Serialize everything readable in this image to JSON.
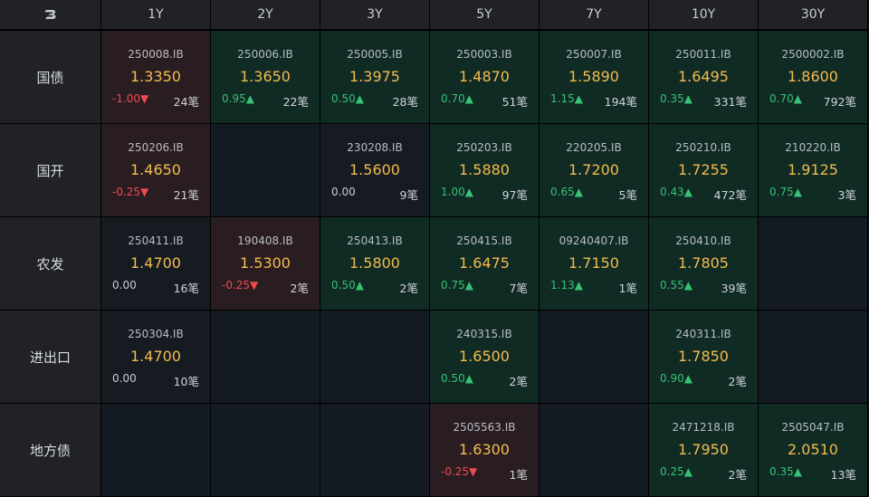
{
  "header": {
    "logo_text": "B",
    "tenors": [
      "1Y",
      "2Y",
      "3Y",
      "5Y",
      "7Y",
      "10Y",
      "30Y"
    ]
  },
  "colors": {
    "up": "#37c274",
    "down": "#f04a4f",
    "rate": "#f2bc4e"
  },
  "rows": [
    {
      "label": "国债",
      "cells": [
        {
          "code": "250008.IB",
          "rate": "1.3350",
          "change": "-1.00▼",
          "dir": "down",
          "count": "24笔"
        },
        {
          "code": "250006.IB",
          "rate": "1.3650",
          "change": "0.95▲",
          "dir": "up",
          "count": "22笔"
        },
        {
          "code": "250005.IB",
          "rate": "1.3975",
          "change": "0.50▲",
          "dir": "up",
          "count": "28笔"
        },
        {
          "code": "250003.IB",
          "rate": "1.4870",
          "change": "0.70▲",
          "dir": "up",
          "count": "51笔"
        },
        {
          "code": "250007.IB",
          "rate": "1.5890",
          "change": "1.15▲",
          "dir": "up",
          "count": "194笔"
        },
        {
          "code": "250011.IB",
          "rate": "1.6495",
          "change": "0.35▲",
          "dir": "up",
          "count": "331笔"
        },
        {
          "code": "2500002.IB",
          "rate": "1.8600",
          "change": "0.70▲",
          "dir": "up",
          "count": "792笔"
        }
      ]
    },
    {
      "label": "国开",
      "cells": [
        {
          "code": "250206.IB",
          "rate": "1.4650",
          "change": "-0.25▼",
          "dir": "down",
          "count": "21笔"
        },
        null,
        {
          "code": "230208.IB",
          "rate": "1.5600",
          "change": "0.00",
          "dir": "flat",
          "count": "9笔"
        },
        {
          "code": "250203.IB",
          "rate": "1.5880",
          "change": "1.00▲",
          "dir": "up",
          "count": "97笔"
        },
        {
          "code": "220205.IB",
          "rate": "1.7200",
          "change": "0.65▲",
          "dir": "up",
          "count": "5笔"
        },
        {
          "code": "250210.IB",
          "rate": "1.7255",
          "change": "0.43▲",
          "dir": "up",
          "count": "472笔"
        },
        {
          "code": "210220.IB",
          "rate": "1.9125",
          "change": "0.75▲",
          "dir": "up",
          "count": "3笔"
        }
      ]
    },
    {
      "label": "农发",
      "cells": [
        {
          "code": "250411.IB",
          "rate": "1.4700",
          "change": "0.00",
          "dir": "flat",
          "count": "16笔"
        },
        {
          "code": "190408.IB",
          "rate": "1.5300",
          "change": "-0.25▼",
          "dir": "down",
          "count": "2笔"
        },
        {
          "code": "250413.IB",
          "rate": "1.5800",
          "change": "0.50▲",
          "dir": "up",
          "count": "2笔"
        },
        {
          "code": "250415.IB",
          "rate": "1.6475",
          "change": "0.75▲",
          "dir": "up",
          "count": "7笔"
        },
        {
          "code": "09240407.IB",
          "rate": "1.7150",
          "change": "1.13▲",
          "dir": "up",
          "count": "1笔"
        },
        {
          "code": "250410.IB",
          "rate": "1.7805",
          "change": "0.55▲",
          "dir": "up",
          "count": "39笔"
        },
        null
      ]
    },
    {
      "label": "进出口",
      "cells": [
        {
          "code": "250304.IB",
          "rate": "1.4700",
          "change": "0.00",
          "dir": "flat",
          "count": "10笔"
        },
        null,
        null,
        {
          "code": "240315.IB",
          "rate": "1.6500",
          "change": "0.50▲",
          "dir": "up",
          "count": "2笔"
        },
        null,
        {
          "code": "240311.IB",
          "rate": "1.7850",
          "change": "0.90▲",
          "dir": "up",
          "count": "2笔"
        },
        null
      ]
    },
    {
      "label": "地方债",
      "cells": [
        null,
        null,
        null,
        {
          "code": "2505563.IB",
          "rate": "1.6300",
          "change": "-0.25▼",
          "dir": "down",
          "count": "1笔"
        },
        null,
        {
          "code": "2471218.IB",
          "rate": "1.7950",
          "change": "0.25▲",
          "dir": "up",
          "count": "2笔"
        },
        {
          "code": "2505047.IB",
          "rate": "2.0510",
          "change": "0.35▲",
          "dir": "up",
          "count": "13笔"
        }
      ]
    }
  ]
}
